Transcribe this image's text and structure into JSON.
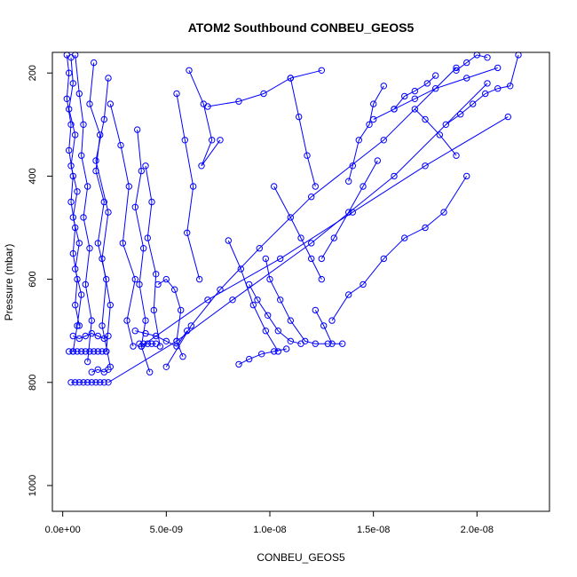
{
  "chart_data": {
    "type": "line",
    "title": "ATOM2 Southbound CONBEU_GEOS5",
    "xlabel": "CONBEU_GEOS5",
    "ylabel": "Pressure (mbar)",
    "xlim": [
      -5e-10,
      2.35e-08
    ],
    "ylim": [
      1050,
      160
    ],
    "y_reversed": true,
    "x_ticks": [
      0,
      5e-09,
      1e-08,
      1.5e-08,
      2e-08
    ],
    "x_tick_labels": [
      "0.0e+00",
      "5.0e-09",
      "1.0e-08",
      "1.5e-08",
      "2.0e-08"
    ],
    "y_ticks": [
      200,
      400,
      600,
      800,
      1000
    ],
    "y_tick_labels": [
      "200",
      "400",
      "600",
      "800",
      "1000"
    ],
    "marker": "open-circle",
    "line_color": "#0000ff",
    "grid": false,
    "legend": "none",
    "series": [
      {
        "x": [
          2e-10,
          3e-10,
          2e-10,
          4e-10,
          3e-10,
          5e-10,
          4e-10,
          6e-10,
          5e-10,
          7e-10,
          6e-10,
          8e-10
        ],
        "y": [
          165,
          200,
          250,
          300,
          350,
          400,
          450,
          500,
          550,
          600,
          650,
          690
        ]
      },
      {
        "x": [
          4e-10,
          5e-10,
          3e-10,
          6e-10,
          4e-10,
          7e-10,
          5e-10,
          8e-10,
          6e-10,
          9e-10,
          7e-10,
          5e-10
        ],
        "y": [
          170,
          220,
          270,
          320,
          380,
          430,
          480,
          530,
          580,
          630,
          690,
          740
        ]
      },
      {
        "x": [
          6e-10,
          8e-10,
          1e-09,
          9e-10,
          1.2e-09,
          1e-09,
          1.3e-09,
          1.1e-09,
          1.4e-09,
          1.2e-09
        ],
        "y": [
          165,
          240,
          300,
          360,
          420,
          480,
          540,
          610,
          680,
          760
        ]
      },
      {
        "x": [
          1.5e-09,
          1.3e-09,
          1.8e-09,
          1.6e-09,
          2e-09,
          1.7e-09,
          2.1e-09,
          1.9e-09,
          2.3e-09
        ],
        "y": [
          180,
          260,
          320,
          390,
          450,
          530,
          600,
          690,
          770
        ]
      },
      {
        "x": [
          2.2e-09,
          2e-09,
          1.6e-09,
          2.2e-09,
          1.9e-09,
          2.3e-09,
          2.1e-09
        ],
        "y": [
          210,
          290,
          370,
          470,
          560,
          650,
          740
        ]
      },
      {
        "x": [
          4e-10,
          6e-10,
          8e-10,
          1e-09,
          1.2e-09,
          1.4e-09,
          1.6e-09,
          1.8e-09,
          2e-09
        ],
        "y": [
          800,
          800,
          800,
          800,
          800,
          800,
          800,
          800,
          800
        ]
      },
      {
        "x": [
          3e-10,
          5e-10,
          7e-10,
          9e-10,
          1.1e-09,
          1.3e-09,
          1.5e-09,
          1.7e-09,
          1.9e-09,
          2.1e-09
        ],
        "y": [
          740,
          740,
          740,
          740,
          740,
          740,
          740,
          740,
          740,
          740
        ]
      },
      {
        "x": [
          5e-10,
          8e-10,
          1.1e-09,
          1.4e-09,
          1.7e-09,
          2e-09,
          2.2e-09
        ],
        "y": [
          710,
          715,
          710,
          705,
          710,
          715,
          710
        ]
      },
      {
        "x": [
          1.4e-09,
          1.7e-09,
          2e-09,
          2.2e-09
        ],
        "y": [
          780,
          775,
          780,
          775
        ]
      },
      {
        "x": [
          2.3e-09,
          2.8e-09,
          3.2e-09,
          2.9e-09,
          3.5e-09,
          3.1e-09,
          3.4e-09
        ],
        "y": [
          260,
          340,
          420,
          530,
          600,
          680,
          730
        ]
      },
      {
        "x": [
          3.6e-09,
          3.8e-09,
          3.5e-09,
          3.9e-09,
          3.7e-09,
          4e-09,
          3.8e-09,
          4.2e-09
        ],
        "y": [
          310,
          390,
          460,
          540,
          610,
          680,
          730,
          780
        ]
      },
      {
        "x": [
          4e-09,
          4.3e-09,
          4.1e-09,
          4.5e-09,
          4.4e-09,
          4.7e-09
        ],
        "y": [
          380,
          450,
          520,
          590,
          660,
          730
        ]
      },
      {
        "x": [
          3.5e-09,
          4e-09,
          4.5e-09,
          5e-09,
          5.5e-09,
          6e-09
        ],
        "y": [
          700,
          705,
          710,
          720,
          730,
          700
        ]
      },
      {
        "x": [
          3.7e-09,
          3.9e-09,
          4.1e-09,
          4.3e-09,
          4.5e-09
        ],
        "y": [
          725,
          725,
          725,
          725,
          725
        ]
      },
      {
        "x": [
          4.6e-09,
          5e-09,
          5.4e-09,
          5.7e-09,
          5.5e-09,
          5.8e-09
        ],
        "y": [
          610,
          600,
          620,
          660,
          720,
          750
        ]
      },
      {
        "x": [
          5.5e-09,
          5.9e-09,
          6.3e-09,
          6e-09,
          6.6e-09
        ],
        "y": [
          240,
          330,
          420,
          510,
          600
        ]
      },
      {
        "x": [
          6.1e-09,
          6.8e-09,
          7.2e-09,
          6.7e-09,
          7.6e-09
        ],
        "y": [
          195,
          260,
          330,
          380,
          330
        ]
      },
      {
        "x": [
          7e-09,
          8.5e-09,
          9.7e-09,
          1.1e-08,
          1.25e-08
        ],
        "y": [
          265,
          255,
          240,
          210,
          195
        ]
      },
      {
        "x": [
          5e-09,
          6.2e-09,
          7.6e-09,
          9.5e-09,
          1.2e-08,
          1.55e-08,
          1.9e-08
        ],
        "y": [
          770,
          690,
          620,
          540,
          440,
          330,
          190
        ]
      },
      {
        "x": [
          2.2e-09,
          5.5e-09,
          8.2e-09,
          1.2e-08,
          1.6e-08,
          2.05e-08
        ],
        "y": [
          800,
          720,
          640,
          530,
          400,
          220
        ]
      },
      {
        "x": [
          3.8e-09,
          7e-09,
          1.05e-08,
          1.4e-08,
          1.75e-08,
          2.15e-08
        ],
        "y": [
          730,
          640,
          560,
          470,
          380,
          285
        ]
      },
      {
        "x": [
          8.5e-09,
          9e-09,
          9.6e-09,
          1.02e-08,
          1.08e-08
        ],
        "y": [
          765,
          755,
          745,
          740,
          735
        ]
      },
      {
        "x": [
          9e-09,
          9.4e-09,
          9.9e-09,
          1.04e-08,
          1.1e-08,
          1.15e-08
        ],
        "y": [
          610,
          640,
          670,
          700,
          720,
          725
        ]
      },
      {
        "x": [
          9.8e-09,
          1e-08,
          1.05e-08,
          1.1e-08,
          1.17e-08,
          1.22e-08,
          1.28e-08
        ],
        "y": [
          560,
          600,
          640,
          680,
          720,
          725,
          725
        ]
      },
      {
        "x": [
          8e-09,
          8.6e-09,
          9.2e-09,
          9.8e-09,
          1.04e-08
        ],
        "y": [
          525,
          580,
          650,
          700,
          740
        ]
      },
      {
        "x": [
          1.02e-08,
          1.1e-08,
          1.15e-08,
          1.2e-08,
          1.25e-08
        ],
        "y": [
          420,
          480,
          520,
          560,
          600
        ]
      },
      {
        "x": [
          1.1e-08,
          1.14e-08,
          1.18e-08,
          1.22e-08
        ],
        "y": [
          210,
          285,
          360,
          420
        ]
      },
      {
        "x": [
          1.25e-08,
          1.31e-08,
          1.38e-08,
          1.45e-08,
          1.52e-08
        ],
        "y": [
          560,
          520,
          470,
          420,
          370
        ]
      },
      {
        "x": [
          1.22e-08,
          1.26e-08,
          1.3e-08,
          1.35e-08
        ],
        "y": [
          660,
          690,
          725,
          725
        ]
      },
      {
        "x": [
          1.3e-08,
          1.38e-08,
          1.45e-08,
          1.55e-08,
          1.65e-08,
          1.75e-08,
          1.84e-08,
          1.95e-08
        ],
        "y": [
          680,
          630,
          610,
          560,
          520,
          500,
          470,
          400
        ]
      },
      {
        "x": [
          1.38e-08,
          1.4e-08,
          1.43e-08,
          1.48e-08,
          1.5e-08,
          1.55e-08
        ],
        "y": [
          410,
          380,
          330,
          300,
          260,
          225
        ]
      },
      {
        "x": [
          1.6e-08,
          1.65e-08,
          1.7e-08,
          1.76e-08,
          1.8e-08
        ],
        "y": [
          270,
          245,
          235,
          220,
          205
        ]
      },
      {
        "x": [
          1.85e-08,
          1.92e-08,
          1.98e-08,
          2.04e-08,
          2.1e-08,
          2.16e-08,
          2.2e-08
        ],
        "y": [
          300,
          280,
          260,
          240,
          230,
          225,
          165
        ]
      },
      {
        "x": [
          1.9e-08,
          1.95e-08,
          2e-08,
          2.05e-08
        ],
        "y": [
          195,
          180,
          165,
          170
        ]
      },
      {
        "x": [
          1.5e-08,
          1.6e-08,
          1.7e-08,
          1.8e-08,
          1.95e-08,
          2.1e-08
        ],
        "y": [
          290,
          270,
          250,
          230,
          210,
          190
        ]
      },
      {
        "x": [
          1.7e-08,
          1.75e-08,
          1.82e-08,
          1.9e-08
        ],
        "y": [
          270,
          290,
          320,
          360
        ]
      }
    ]
  }
}
